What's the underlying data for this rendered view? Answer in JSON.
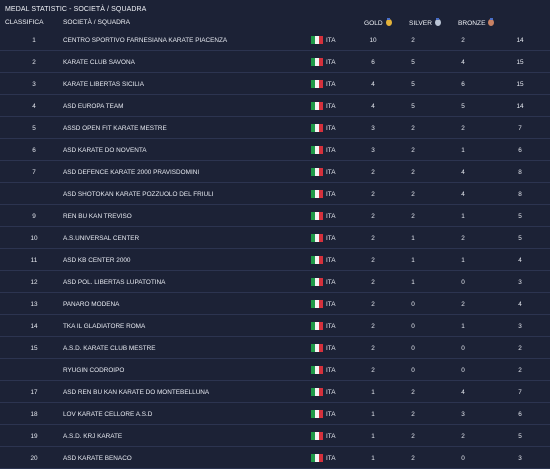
{
  "title": "MEDAL STATISTIC - SOCIETÀ / SQUADRA",
  "headers": {
    "rank": "CLASSIFICA",
    "team": "SOCIETÀ / SQUADRA",
    "gold": "GOLD",
    "silver": "SILVER",
    "bronze": "BRONZE"
  },
  "colors": {
    "background": "#1c2236",
    "gold": "#e3b23a",
    "silver": "#b9c3d4",
    "bronze": "#c98264"
  },
  "rows": [
    {
      "rank": "1",
      "team": "CENTRO SPORTIVO FARNESIANA KARATE PIACENZA",
      "nation": "ITA",
      "gold": "10",
      "silver": "2",
      "bronze": "2",
      "total": "14"
    },
    {
      "rank": "2",
      "team": "KARATE CLUB SAVONA",
      "nation": "ITA",
      "gold": "6",
      "silver": "5",
      "bronze": "4",
      "total": "15"
    },
    {
      "rank": "3",
      "team": "KARATE LIBERTAS SICILIA",
      "nation": "ITA",
      "gold": "4",
      "silver": "5",
      "bronze": "6",
      "total": "15"
    },
    {
      "rank": "4",
      "team": "ASD EUROPA TEAM",
      "nation": "ITA",
      "gold": "4",
      "silver": "5",
      "bronze": "5",
      "total": "14"
    },
    {
      "rank": "5",
      "team": "ASSD OPEN FIT KARATE MESTRE",
      "nation": "ITA",
      "gold": "3",
      "silver": "2",
      "bronze": "2",
      "total": "7"
    },
    {
      "rank": "6",
      "team": "ASD KARATE DO NOVENTA",
      "nation": "ITA",
      "gold": "3",
      "silver": "2",
      "bronze": "1",
      "total": "6"
    },
    {
      "rank": "7",
      "team": "ASD DEFENCE KARATE 2000 PRAVISDOMINI",
      "nation": "ITA",
      "gold": "2",
      "silver": "2",
      "bronze": "4",
      "total": "8"
    },
    {
      "rank": "",
      "team": "ASD SHOTOKAN KARATE POZZUOLO DEL FRIULI",
      "nation": "ITA",
      "gold": "2",
      "silver": "2",
      "bronze": "4",
      "total": "8"
    },
    {
      "rank": "9",
      "team": "REN BU KAN TREVISO",
      "nation": "ITA",
      "gold": "2",
      "silver": "2",
      "bronze": "1",
      "total": "5"
    },
    {
      "rank": "10",
      "team": "A.S.UNIVERSAL CENTER",
      "nation": "ITA",
      "gold": "2",
      "silver": "1",
      "bronze": "2",
      "total": "5"
    },
    {
      "rank": "11",
      "team": "ASD KB CENTER 2000",
      "nation": "ITA",
      "gold": "2",
      "silver": "1",
      "bronze": "1",
      "total": "4"
    },
    {
      "rank": "12",
      "team": "ASD POL. LIBERTAS LUPATOTINA",
      "nation": "ITA",
      "gold": "2",
      "silver": "1",
      "bronze": "0",
      "total": "3"
    },
    {
      "rank": "13",
      "team": "PANARO MODENA",
      "nation": "ITA",
      "gold": "2",
      "silver": "0",
      "bronze": "2",
      "total": "4"
    },
    {
      "rank": "14",
      "team": "TKA IL GLADIATORE ROMA",
      "nation": "ITA",
      "gold": "2",
      "silver": "0",
      "bronze": "1",
      "total": "3"
    },
    {
      "rank": "15",
      "team": "A.S.D. KARATE CLUB MESTRE",
      "nation": "ITA",
      "gold": "2",
      "silver": "0",
      "bronze": "0",
      "total": "2"
    },
    {
      "rank": "",
      "team": "RYUGIN CODROIPO",
      "nation": "ITA",
      "gold": "2",
      "silver": "0",
      "bronze": "0",
      "total": "2"
    },
    {
      "rank": "17",
      "team": "ASD REN BU KAN KARATE DO MONTEBELLUNA",
      "nation": "ITA",
      "gold": "1",
      "silver": "2",
      "bronze": "4",
      "total": "7"
    },
    {
      "rank": "18",
      "team": "LOV KARATE CELLORE A.S.D",
      "nation": "ITA",
      "gold": "1",
      "silver": "2",
      "bronze": "3",
      "total": "6"
    },
    {
      "rank": "19",
      "team": "A.S.D. KRJ KARATE",
      "nation": "ITA",
      "gold": "1",
      "silver": "2",
      "bronze": "2",
      "total": "5"
    },
    {
      "rank": "20",
      "team": "ASD KARATE BENACO",
      "nation": "ITA",
      "gold": "1",
      "silver": "2",
      "bronze": "0",
      "total": "3"
    }
  ]
}
